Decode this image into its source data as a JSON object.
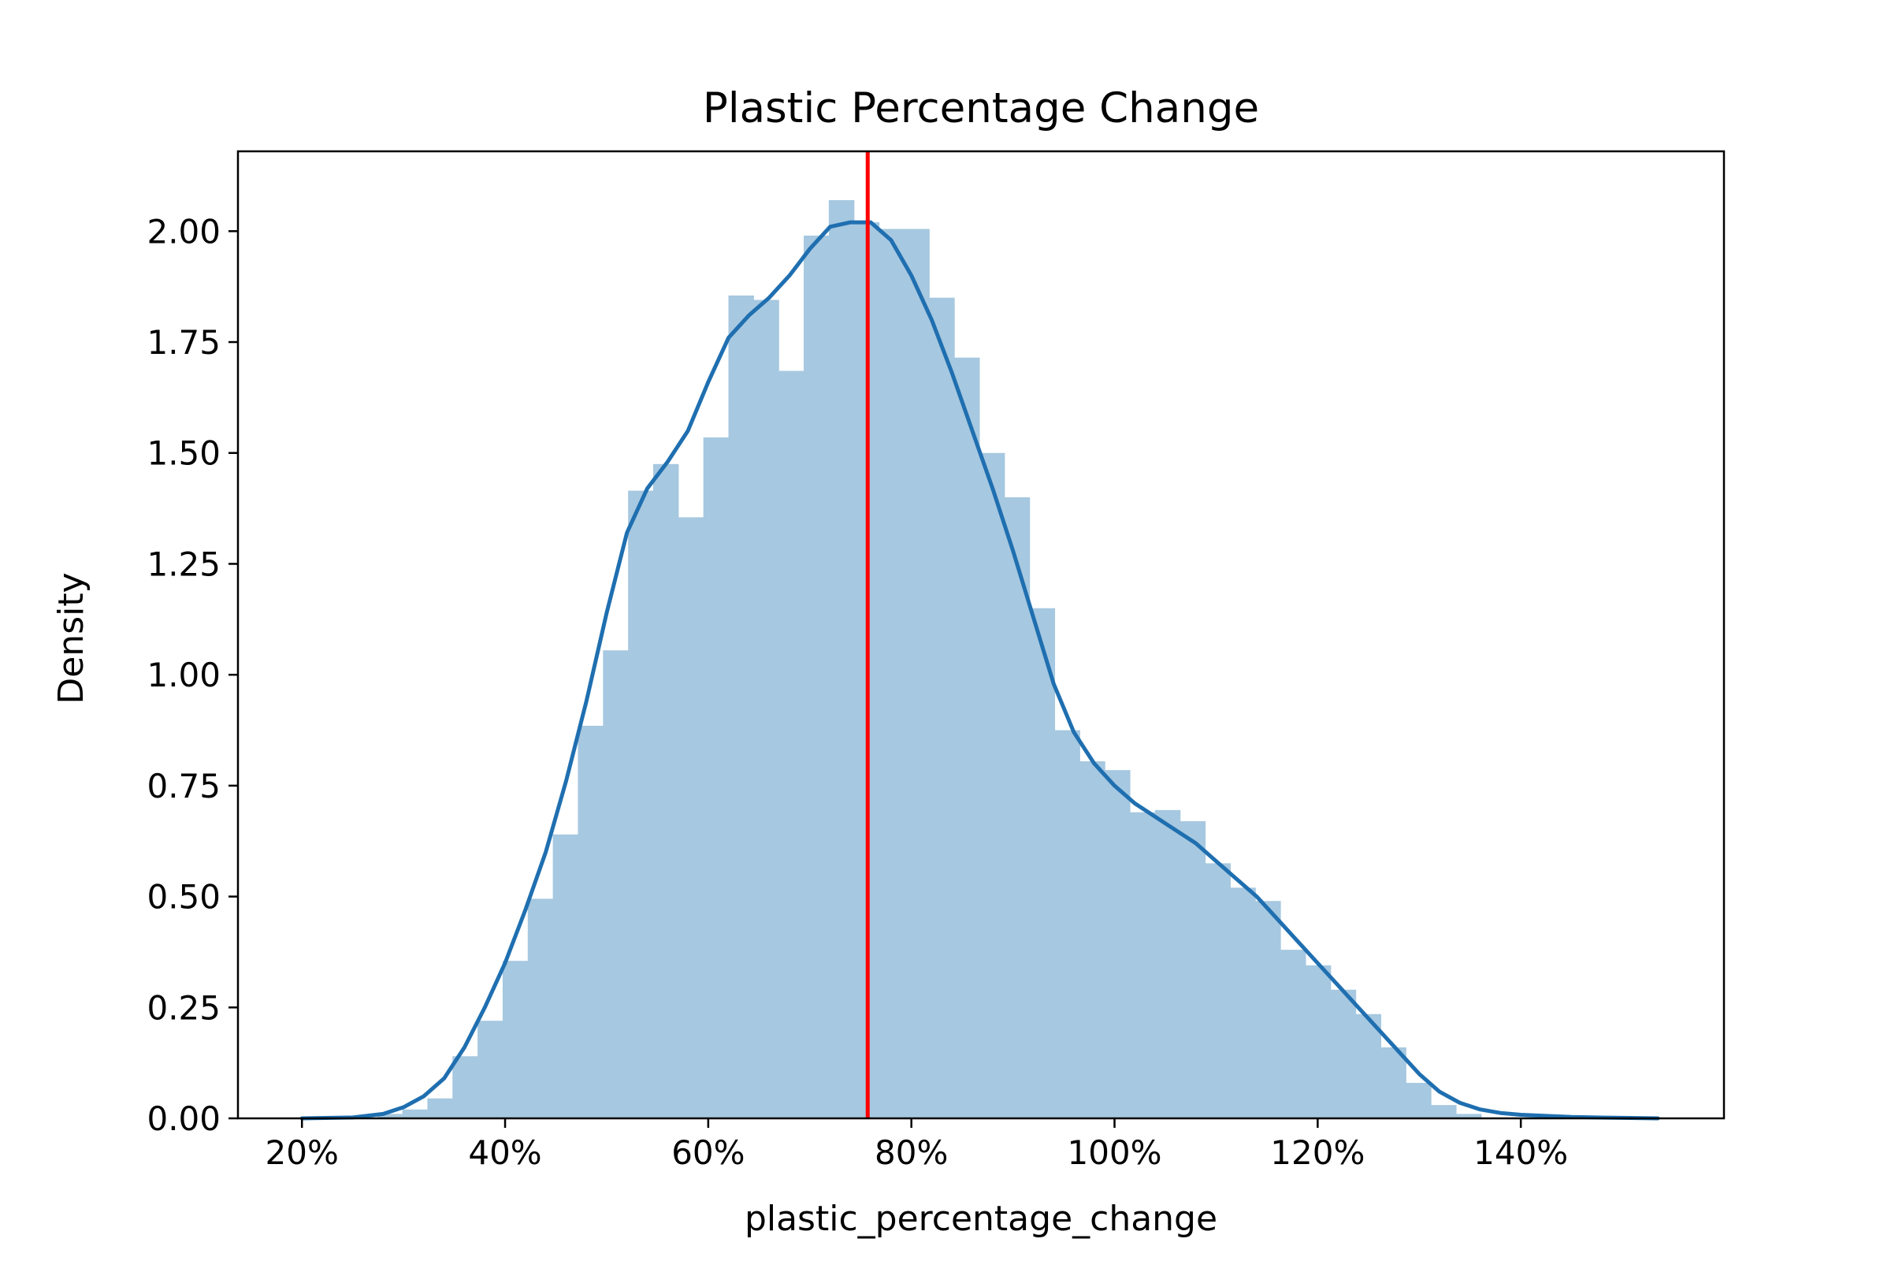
{
  "chart_data": {
    "type": "bar",
    "title": "Plastic Percentage Change",
    "xlabel": "plastic_percentage_change",
    "ylabel": "Density",
    "xlim": [
      0.137,
      1.6
    ],
    "ylim": [
      0,
      2.18
    ],
    "grid": false,
    "x_ticks": [
      0.2,
      0.4,
      0.6,
      0.8,
      1.0,
      1.2,
      1.4
    ],
    "x_tick_labels": [
      "20%",
      "40%",
      "60%",
      "80%",
      "100%",
      "120%",
      "140%"
    ],
    "y_ticks": [
      0,
      0.25,
      0.5,
      0.75,
      1.0,
      1.25,
      1.5,
      1.75,
      2.0
    ],
    "y_tick_labels": [
      "0.00",
      "0.25",
      "0.50",
      "0.75",
      "1.00",
      "1.25",
      "1.50",
      "1.75",
      "2.00"
    ],
    "histogram": {
      "bin_edges": [
        0.2,
        0.2247,
        0.2494,
        0.2741,
        0.2988,
        0.3235,
        0.3482,
        0.3729,
        0.3976,
        0.4223,
        0.447,
        0.4717,
        0.4964,
        0.5211,
        0.5458,
        0.5705,
        0.5952,
        0.6199,
        0.6446,
        0.6693,
        0.694,
        0.7187,
        0.7434,
        0.7681,
        0.7928,
        0.8175,
        0.8422,
        0.8669,
        0.8916,
        0.9163,
        0.941,
        0.9657,
        0.9904,
        1.0151,
        1.0398,
        1.0645,
        1.0892,
        1.1139,
        1.1386,
        1.1633,
        1.188,
        1.2127,
        1.2374,
        1.2621,
        1.2868,
        1.3115,
        1.3362,
        1.3609,
        1.3856,
        1.4103,
        1.435,
        1.4597,
        1.4844,
        1.5091,
        1.5338
      ],
      "densities": [
        0.0,
        0.0,
        0.0,
        0.01,
        0.02,
        0.045,
        0.14,
        0.22,
        0.355,
        0.495,
        0.64,
        0.885,
        1.055,
        1.415,
        1.475,
        1.355,
        1.535,
        1.855,
        1.845,
        1.685,
        1.99,
        2.07,
        2.02,
        2.005,
        2.005,
        1.85,
        1.715,
        1.5,
        1.4,
        1.15,
        0.875,
        0.805,
        0.785,
        0.69,
        0.695,
        0.67,
        0.575,
        0.52,
        0.49,
        0.38,
        0.345,
        0.29,
        0.235,
        0.16,
        0.08,
        0.03,
        0.01,
        0.0,
        0.0,
        0.0,
        0.0,
        0.0,
        0.0,
        0.0
      ],
      "color": "#a6c8e0"
    },
    "kde": {
      "color": "#1f6fb0",
      "x": [
        0.2,
        0.25,
        0.28,
        0.3,
        0.32,
        0.34,
        0.36,
        0.38,
        0.4,
        0.42,
        0.44,
        0.46,
        0.48,
        0.5,
        0.52,
        0.54,
        0.56,
        0.58,
        0.6,
        0.62,
        0.64,
        0.66,
        0.68,
        0.7,
        0.72,
        0.74,
        0.76,
        0.78,
        0.8,
        0.82,
        0.84,
        0.86,
        0.88,
        0.9,
        0.92,
        0.94,
        0.96,
        0.98,
        1.0,
        1.02,
        1.04,
        1.06,
        1.08,
        1.1,
        1.12,
        1.14,
        1.16,
        1.18,
        1.2,
        1.22,
        1.24,
        1.26,
        1.28,
        1.3,
        1.32,
        1.34,
        1.36,
        1.38,
        1.4,
        1.45,
        1.5,
        1.535
      ],
      "y": [
        0.0,
        0.002,
        0.01,
        0.025,
        0.05,
        0.09,
        0.16,
        0.25,
        0.35,
        0.47,
        0.6,
        0.76,
        0.94,
        1.14,
        1.32,
        1.42,
        1.48,
        1.55,
        1.66,
        1.76,
        1.81,
        1.85,
        1.9,
        1.96,
        2.01,
        2.02,
        2.02,
        1.98,
        1.9,
        1.8,
        1.68,
        1.55,
        1.42,
        1.28,
        1.13,
        0.98,
        0.87,
        0.8,
        0.75,
        0.71,
        0.68,
        0.65,
        0.62,
        0.58,
        0.54,
        0.5,
        0.45,
        0.4,
        0.35,
        0.3,
        0.25,
        0.2,
        0.15,
        0.1,
        0.06,
        0.035,
        0.02,
        0.012,
        0.008,
        0.003,
        0.001,
        0.0
      ]
    },
    "reference_line": {
      "x": 0.757,
      "color": "#ff0000"
    }
  }
}
